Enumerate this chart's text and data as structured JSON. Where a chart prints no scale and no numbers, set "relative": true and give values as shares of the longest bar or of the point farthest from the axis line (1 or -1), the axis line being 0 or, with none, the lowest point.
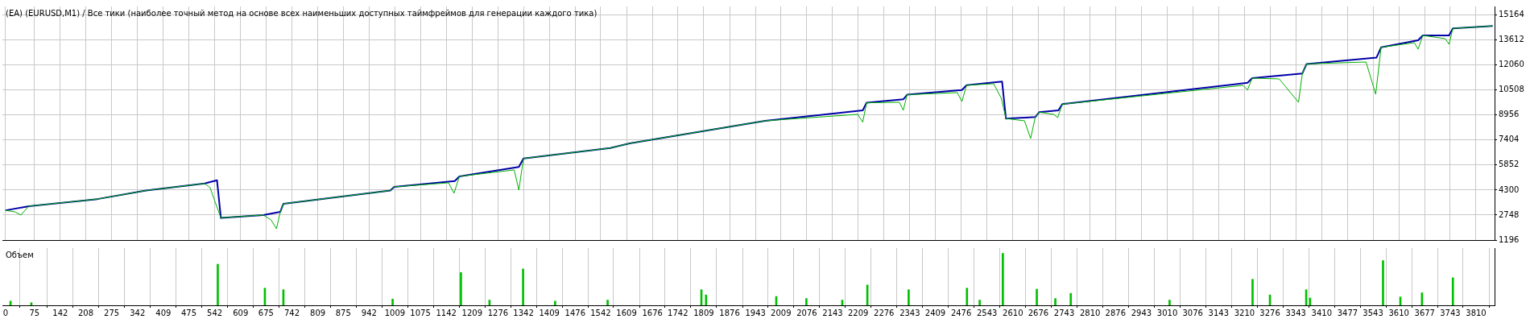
{
  "chart_data": [
    {
      "type": "line",
      "title": "(EA) (EURUSD,M1) / Все тики (наиболее точный метод на основе всех наименьших доступных таймфреймов для генерации каждого тика)",
      "xlim": [
        -8,
        3858
      ],
      "xticks": [
        0,
        75,
        142,
        208,
        275,
        342,
        409,
        475,
        542,
        609,
        675,
        742,
        809,
        875,
        942,
        1009,
        1075,
        1142,
        1209,
        1276,
        1342,
        1409,
        1476,
        1542,
        1609,
        1676,
        1742,
        1809,
        1876,
        1943,
        2009,
        2076,
        2143,
        2209,
        2276,
        2343,
        2409,
        2476,
        2543,
        2610,
        2676,
        2743,
        2810,
        2876,
        2943,
        3010,
        3076,
        3143,
        3210,
        3276,
        3343,
        3410,
        3477,
        3543,
        3610,
        3677,
        3743,
        3810
      ],
      "ylim": [
        1196,
        15700
      ],
      "yticks": [
        1196,
        2748,
        4300,
        5852,
        7404,
        8956,
        10508,
        12060,
        13612,
        15164
      ],
      "grid": true,
      "tick_labels": "y",
      "series": [
        {
          "color": "#00b000",
          "x": [
            0,
            24,
            40,
            60,
            238,
            364,
            516,
            530,
            544,
            558,
            668,
            688,
            702,
            712,
            720,
            997,
            1007,
            1148,
            1162,
            1176,
            1318,
            1330,
            1342,
            1567,
            1617,
            1968,
            2208,
            2221,
            2231,
            2316,
            2326,
            2336,
            2466,
            2478,
            2490,
            2560,
            2580,
            2592,
            2640,
            2656,
            2668,
            2678,
            2716,
            2726,
            2738,
            3206,
            3218,
            3230,
            3300,
            3350,
            3360,
            3371,
            3525,
            3550,
            3564,
            3650,
            3660,
            3672,
            3730,
            3740,
            3750,
            3853
          ],
          "values": [
            3040,
            2950,
            2750,
            3300,
            3740,
            4270,
            4710,
            4450,
            3500,
            2580,
            2750,
            2450,
            1900,
            2950,
            3450,
            4270,
            4500,
            4750,
            4100,
            5150,
            5550,
            4300,
            6260,
            6910,
            7200,
            8600,
            9000,
            8520,
            9720,
            9750,
            9250,
            10220,
            10350,
            9800,
            10810,
            10900,
            10000,
            8740,
            8600,
            7500,
            8830,
            9130,
            9000,
            8800,
            9630,
            10800,
            10520,
            11250,
            11200,
            9750,
            11540,
            12130,
            12250,
            10250,
            13160,
            13450,
            13050,
            13900,
            13700,
            13350,
            14340,
            14490
          ]
        },
        {
          "color": "#0000a8",
          "x": [
            0,
            61,
            238,
            364,
            516,
            548,
            558,
            668,
            712,
            720,
            997,
            1007,
            1164,
            1176,
            1330,
            1342,
            1567,
            1617,
            1968,
            2221,
            2231,
            2326,
            2336,
            2478,
            2490,
            2582,
            2592,
            2668,
            2678,
            2728,
            2738,
            3218,
            3230,
            3360,
            3371,
            3552,
            3564,
            3660,
            3672,
            3740,
            3750,
            3853
          ],
          "values": [
            3040,
            3300,
            3740,
            4270,
            4710,
            4910,
            2570,
            2750,
            2950,
            3450,
            4270,
            4500,
            4860,
            5150,
            5740,
            6260,
            6910,
            7200,
            8600,
            9250,
            9720,
            9930,
            10220,
            10510,
            10810,
            11040,
            8740,
            8830,
            9130,
            9250,
            9630,
            10960,
            11250,
            11540,
            12130,
            12520,
            13160,
            13600,
            13900,
            13900,
            14340,
            14490
          ]
        }
      ]
    },
    {
      "type": "bar",
      "title": "Объем",
      "relative": true,
      "color": "#00c000",
      "xlim": [
        -8,
        3858
      ],
      "xticks": [
        0,
        75,
        142,
        208,
        275,
        342,
        409,
        475,
        542,
        609,
        675,
        742,
        809,
        875,
        942,
        1009,
        1075,
        1142,
        1209,
        1276,
        1342,
        1409,
        1476,
        1542,
        1609,
        1676,
        1742,
        1809,
        1876,
        1943,
        2009,
        2076,
        2143,
        2209,
        2276,
        2343,
        2409,
        2476,
        2543,
        2610,
        2676,
        2743,
        2810,
        2876,
        2943,
        3010,
        3076,
        3143,
        3210,
        3276,
        3343,
        3410,
        3477,
        3543,
        3610,
        3677,
        3743,
        3810
      ],
      "grid": "x",
      "tick_labels": "x",
      "x": [
        13,
        67,
        550,
        672,
        720,
        1003,
        1180,
        1254,
        1341,
        1424,
        1560,
        1803,
        1815,
        1997,
        2075,
        2168,
        2233,
        2340,
        2491,
        2524,
        2584,
        2672,
        2720,
        2760,
        3016,
        3231,
        3276,
        3370,
        3380,
        3569,
        3614,
        3670,
        3750
      ],
      "values": [
        0.08,
        0.05,
        0.79,
        0.33,
        0.3,
        0.12,
        0.63,
        0.1,
        0.7,
        0.08,
        0.1,
        0.3,
        0.2,
        0.17,
        0.13,
        0.1,
        0.39,
        0.3,
        0.33,
        0.1,
        1,
        0.31,
        0.13,
        0.23,
        0.1,
        0.5,
        0.2,
        0.3,
        0.14,
        0.86,
        0.16,
        0.24,
        0.53
      ]
    }
  ]
}
